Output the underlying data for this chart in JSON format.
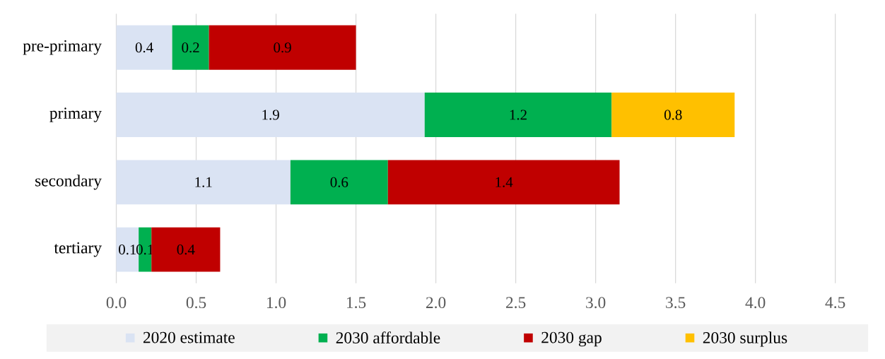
{
  "chart_data": {
    "type": "bar",
    "orientation": "horizontal",
    "stacked": true,
    "categories": [
      "pre-primary",
      "primary",
      "secondary",
      "tertiary"
    ],
    "series": [
      {
        "name": "2020 estimate",
        "color": "#dae3f3",
        "values": [
          0.35,
          1.93,
          1.09,
          0.14
        ],
        "value_labels": [
          "0.4",
          "1.9",
          "1.1",
          "0.1"
        ]
      },
      {
        "name": "2030 affordable",
        "color": "#00b050",
        "values": [
          0.23,
          1.17,
          0.61,
          0.08
        ],
        "value_labels": [
          "0.2",
          "1.2",
          "0.6",
          "0.1"
        ]
      },
      {
        "name": "2030 gap",
        "color": "#c00000",
        "values": [
          0.92,
          null,
          1.45,
          0.43
        ],
        "value_labels": [
          "0.9",
          null,
          "1.4",
          "0.4"
        ]
      },
      {
        "name": "2030 surplus",
        "color": "#ffc000",
        "values": [
          null,
          0.77,
          null,
          null
        ],
        "value_labels": [
          null,
          "0.8",
          null,
          null
        ]
      }
    ],
    "xlim": [
      0,
      4.5
    ],
    "xticks": [
      {
        "value": 0,
        "label": "0.0"
      },
      0.5,
      {
        "value": 1,
        "label": "1.0"
      },
      1.5,
      {
        "value": 2,
        "label": "2.0"
      },
      2.5,
      {
        "value": 3,
        "label": "3.0"
      },
      3.5,
      {
        "value": 4,
        "label": "4.0"
      },
      4.5
    ],
    "grid": "x",
    "legend": "bottom"
  }
}
